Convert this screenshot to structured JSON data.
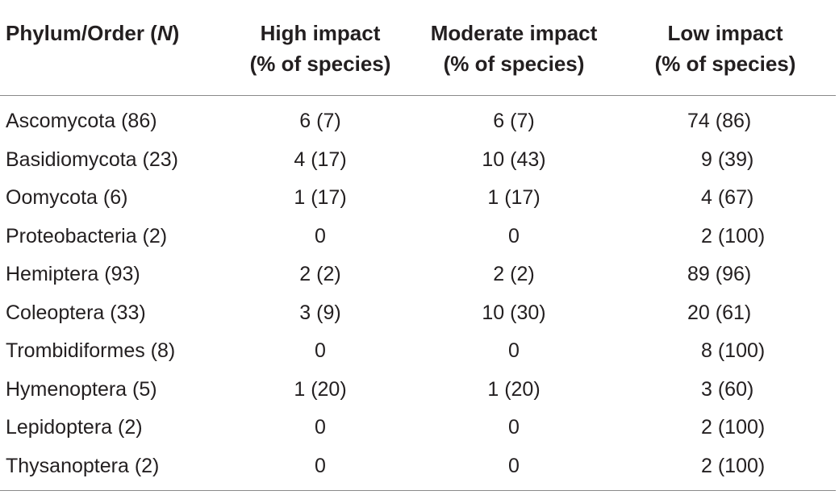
{
  "table": {
    "headers": [
      {
        "line1": "Phylum/Order (",
        "italic": "N",
        "line1_end": ")",
        "line2": ""
      },
      {
        "line1": "High impact",
        "line2": "(% of species)"
      },
      {
        "line1": "Moderate impact",
        "line2": "(% of species)"
      },
      {
        "line1": "Low impact",
        "line2": "(% of species)"
      }
    ],
    "rows": [
      {
        "name": "Ascomycota (86)",
        "high": "6 (7)",
        "moderate": "6 (7)",
        "low": "74 (86)"
      },
      {
        "name": "Basidiomycota (23)",
        "high": "4 (17)",
        "moderate": "10 (43)",
        "low": "9 (39)"
      },
      {
        "name": "Oomycota (6)",
        "high": "1 (17)",
        "moderate": "1 (17)",
        "low": "4 (67)"
      },
      {
        "name": "Proteobacteria (2)",
        "high": "0",
        "moderate": "0",
        "low": "2 (100)"
      },
      {
        "name": "Hemiptera (93)",
        "high": "2 (2)",
        "moderate": "2 (2)",
        "low": "89 (96)"
      },
      {
        "name": "Coleoptera (33)",
        "high": "3 (9)",
        "moderate": "10 (30)",
        "low": "20 (61)"
      },
      {
        "name": "Trombidiformes (8)",
        "high": "0",
        "moderate": "0",
        "low": "8 (100)"
      },
      {
        "name": "Hymenoptera (5)",
        "high": "1 (20)",
        "moderate": "1 (20)",
        "low": "3 (60)"
      },
      {
        "name": "Lepidoptera (2)",
        "high": "0",
        "moderate": "0",
        "low": "2 (100)"
      },
      {
        "name": "Thysanoptera (2)",
        "high": "0",
        "moderate": "0",
        "low": "2 (100)"
      }
    ]
  }
}
